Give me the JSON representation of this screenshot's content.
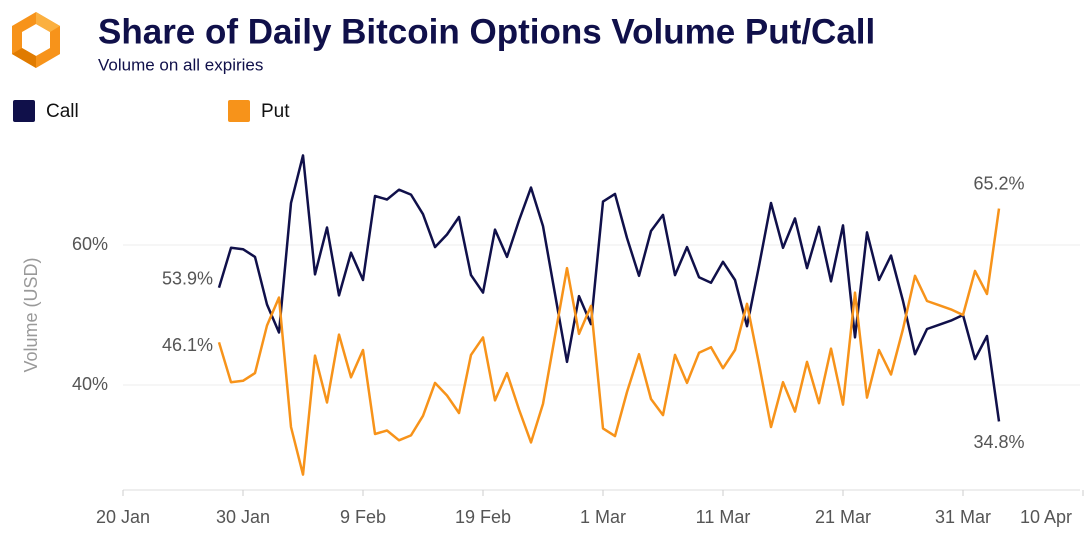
{
  "chart_data": {
    "type": "line",
    "title": "Share of Daily Bitcoin Options Volume Put/Call",
    "subtitle": "Volume on all expiries",
    "y_label": "Volume (USD)",
    "x": [
      "28 Jan",
      "29 Jan",
      "30 Jan",
      "31 Jan",
      "1 Feb",
      "2 Feb",
      "3 Feb",
      "4 Feb",
      "5 Feb",
      "6 Feb",
      "7 Feb",
      "8 Feb",
      "9 Feb",
      "10 Feb",
      "11 Feb",
      "12 Feb",
      "13 Feb",
      "14 Feb",
      "15 Feb",
      "16 Feb",
      "17 Feb",
      "18 Feb",
      "19 Feb",
      "20 Feb",
      "21 Feb",
      "22 Feb",
      "23 Feb",
      "24 Feb",
      "25 Feb",
      "26 Feb",
      "27 Feb",
      "28 Feb",
      "1 Mar",
      "2 Mar",
      "3 Mar",
      "4 Mar",
      "5 Mar",
      "6 Mar",
      "7 Mar",
      "8 Mar",
      "9 Mar",
      "10 Mar",
      "11 Mar",
      "12 Mar",
      "13 Mar",
      "14 Mar",
      "15 Mar",
      "16 Mar",
      "17 Mar",
      "18 Mar",
      "19 Mar",
      "20 Mar",
      "21 Mar",
      "22 Mar",
      "23 Mar",
      "24 Mar",
      "25 Mar",
      "26 Mar",
      "27 Mar",
      "28 Mar",
      "29 Mar",
      "30 Mar",
      "31 Mar",
      "1 Apr",
      "2 Apr",
      "3 Apr"
    ],
    "series": [
      {
        "name": "Call",
        "color": "#10104a",
        "values": [
          53.9,
          59.6,
          59.4,
          58.3,
          51.5,
          47.5,
          66,
          72.8,
          55.8,
          62.5,
          52.8,
          58.9,
          55,
          67,
          66.5,
          67.9,
          67.2,
          64.4,
          59.7,
          61.5,
          64,
          55.7,
          53.2,
          62.2,
          58.3,
          63.5,
          68.2,
          62.7,
          53,
          43.3,
          52.7,
          48.7,
          66.2,
          67.3,
          61,
          55.6,
          62,
          64.3,
          55.7,
          59.7,
          55.4,
          54.6,
          57.6,
          55,
          48.4,
          57,
          66,
          59.6,
          63.8,
          56.7,
          62.6,
          54.8,
          62.8,
          46.8,
          61.8,
          55,
          58.5,
          52,
          44.4,
          48,
          48.6,
          49.2,
          50,
          43.7,
          47,
          34.8
        ],
        "value_labels": [
          "53.9%",
          null,
          null,
          null,
          null,
          null,
          null,
          null,
          null,
          null,
          null,
          null,
          null,
          null,
          null,
          null,
          null,
          null,
          null,
          null,
          null,
          null,
          null,
          null,
          null,
          null,
          null,
          null,
          null,
          null,
          null,
          null,
          null,
          null,
          null,
          null,
          null,
          null,
          null,
          null,
          null,
          null,
          null,
          null,
          null,
          null,
          null,
          null,
          null,
          null,
          null,
          null,
          null,
          null,
          null,
          null,
          null,
          null,
          null,
          null,
          null,
          null,
          null,
          null,
          null,
          "34.8%"
        ]
      },
      {
        "name": "Put",
        "color": "#f7931a",
        "values": [
          46.1,
          40.4,
          40.6,
          41.7,
          48.5,
          52.5,
          34,
          27.2,
          44.2,
          37.5,
          47.2,
          41.1,
          45,
          33,
          33.5,
          32.1,
          32.8,
          35.6,
          40.3,
          38.5,
          36,
          44.3,
          46.8,
          37.8,
          41.7,
          36.5,
          31.8,
          37.3,
          47,
          56.7,
          47.3,
          51.3,
          33.8,
          32.7,
          39,
          44.4,
          38,
          35.7,
          44.3,
          40.3,
          44.6,
          45.4,
          42.4,
          45,
          51.6,
          43,
          34,
          40.4,
          36.2,
          43.3,
          37.4,
          45.2,
          37.2,
          53.2,
          38.2,
          45,
          41.5,
          48,
          55.6,
          52,
          51.4,
          50.8,
          50,
          56.3,
          53,
          65.2
        ],
        "value_labels": [
          "46.1%",
          null,
          null,
          null,
          null,
          null,
          null,
          null,
          null,
          null,
          null,
          null,
          null,
          null,
          null,
          null,
          null,
          null,
          null,
          null,
          null,
          null,
          null,
          null,
          null,
          null,
          null,
          null,
          null,
          null,
          null,
          null,
          null,
          null,
          null,
          null,
          null,
          null,
          null,
          null,
          null,
          null,
          null,
          null,
          null,
          null,
          null,
          null,
          null,
          null,
          null,
          null,
          null,
          null,
          null,
          null,
          null,
          null,
          null,
          null,
          null,
          null,
          null,
          null,
          null,
          "65.2%"
        ]
      }
    ],
    "xlim": [
      "20 Jan",
      "10 Apr"
    ],
    "xticks": [
      "20 Jan",
      "30 Jan",
      "9 Feb",
      "19 Feb",
      "1 Mar",
      "11 Mar",
      "21 Mar",
      "31 Mar",
      "10 Apr"
    ],
    "ylim": [
      25,
      75
    ],
    "yticks": [
      {
        "value": 40,
        "label": "40%"
      },
      {
        "value": 60,
        "label": "60%"
      }
    ],
    "grid": true,
    "legend": "top-left"
  }
}
